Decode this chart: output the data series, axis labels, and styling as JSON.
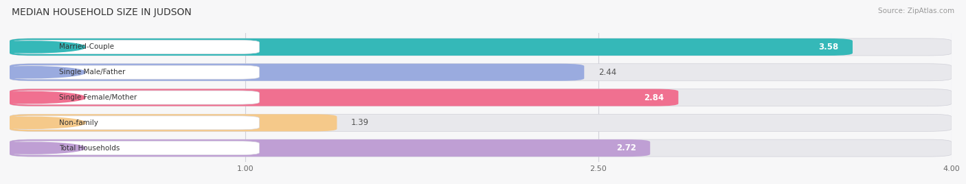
{
  "title": "MEDIAN HOUSEHOLD SIZE IN JUDSON",
  "source": "Source: ZipAtlas.com",
  "categories": [
    "Married-Couple",
    "Single Male/Father",
    "Single Female/Mother",
    "Non-family",
    "Total Households"
  ],
  "values": [
    3.58,
    2.44,
    2.84,
    1.39,
    2.72
  ],
  "bar_colors": [
    "#35b8b8",
    "#9aabdf",
    "#f07090",
    "#f5c98a",
    "#bf9fd4"
  ],
  "bar_bg_color": "#e8e8ec",
  "label_dot_colors": [
    "#35b8b8",
    "#9aabdf",
    "#f07090",
    "#f5c98a",
    "#bf9fd4"
  ],
  "xmin": 0.0,
  "xmax": 4.0,
  "xticks": [
    1.0,
    2.5,
    4.0
  ],
  "value_inside_threshold": 2.5,
  "background_color": "#f7f7f8"
}
